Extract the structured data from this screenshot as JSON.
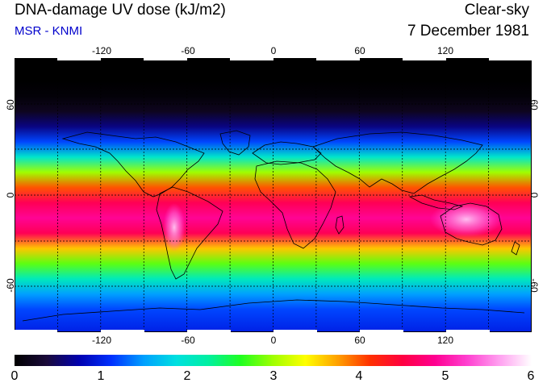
{
  "header": {
    "title": "DNA-damage UV dose (kJ/m2)",
    "source": "MSR - KNMI",
    "sky_condition": "Clear-sky",
    "date": "7 December 1981"
  },
  "map": {
    "lon_range": [
      -180,
      180
    ],
    "lat_range": [
      -90,
      90
    ],
    "lon_ticks": [
      "-120",
      "-60",
      "0",
      "60",
      "120"
    ],
    "lat_ticks_left": [
      "60",
      "0",
      "-60"
    ],
    "lat_ticks_right": [
      "60",
      "0",
      "-60"
    ],
    "gridline_style": "dashed-black"
  },
  "colorbar": {
    "min": 0,
    "max": 6,
    "labels": [
      "0",
      "1",
      "2",
      "3",
      "4",
      "5",
      "6"
    ],
    "stops": [
      "#000000",
      "#1a0a3a",
      "#0000b0",
      "#0030ff",
      "#00a0ff",
      "#00e0e0",
      "#00f0a0",
      "#20ff20",
      "#a0ff00",
      "#ffff00",
      "#ffa000",
      "#ff3000",
      "#ff0040",
      "#ff0090",
      "#ff40d0",
      "#ffa0f0",
      "#ffffff"
    ]
  },
  "chart_data": {
    "type": "heatmap",
    "title": "DNA-damage UV dose (kJ/m2)",
    "variable": "Clear-sky DNA-damage UV dose",
    "units": "kJ/m2",
    "date": "7 December 1981",
    "value_range": [
      0,
      6
    ],
    "latitude_profile": {
      "lat": [
        90,
        75,
        65,
        55,
        45,
        35,
        25,
        15,
        5,
        -5,
        -15,
        -25,
        -35,
        -45,
        -55,
        -65,
        -75,
        -90
      ],
      "dose": [
        0.0,
        0.0,
        0.05,
        0.2,
        0.6,
        1.2,
        2.0,
        3.0,
        4.0,
        4.6,
        4.9,
        4.6,
        3.6,
        2.8,
        2.1,
        1.5,
        1.2,
        1.0
      ]
    },
    "notes": [
      "Maximum values over 5 kJ/m2 over the Andes and Australia"
    ]
  }
}
